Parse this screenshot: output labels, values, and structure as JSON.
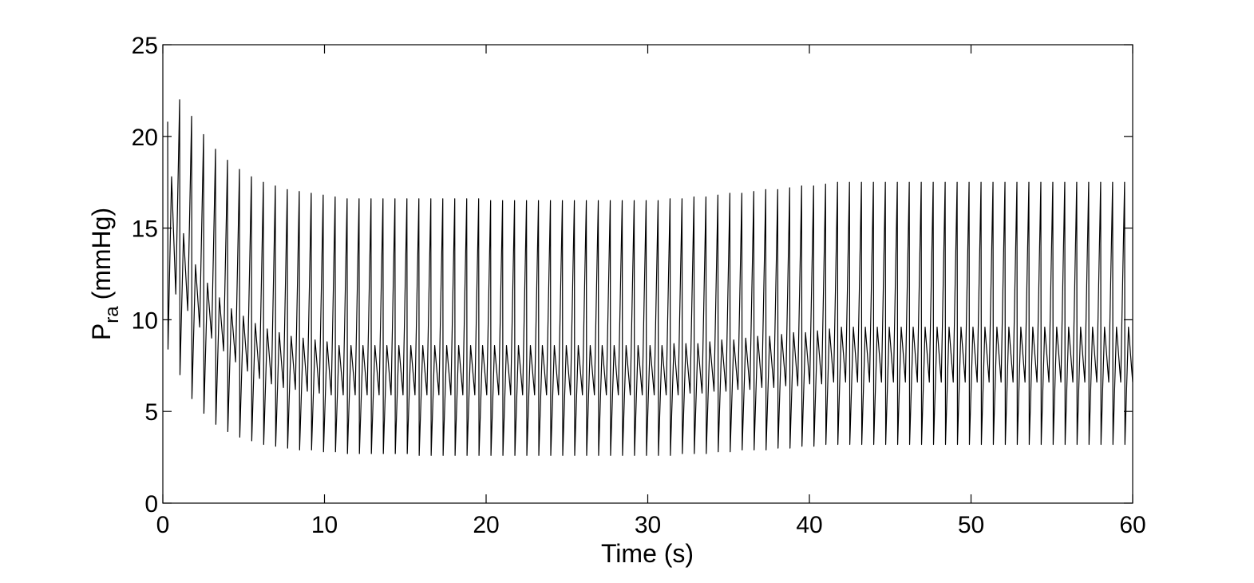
{
  "chart_data": {
    "type": "line",
    "x_label": "Time (s)",
    "y_label": {
      "base": "P",
      "subscript": "ra",
      "rest": "(mmHg)"
    },
    "color": "#000000",
    "xlim": [
      0,
      60
    ],
    "xticks": [
      0,
      10,
      20,
      30,
      40,
      50,
      60
    ],
    "ylim": [
      0,
      25
    ],
    "yticks": [
      0,
      5,
      10,
      15,
      20,
      25
    ],
    "x": [
      0.3,
      0.32,
      0.54,
      0.8,
      1.04,
      1.06,
      1.28,
      1.54,
      1.78,
      1.8,
      2.02,
      2.28,
      2.52,
      2.54,
      2.76,
      3.02,
      3.26,
      3.28,
      3.5,
      3.76,
      4.0,
      4.02,
      4.24,
      4.5,
      4.74,
      4.76,
      4.98,
      5.24,
      5.48,
      5.5,
      5.72,
      5.98,
      6.22,
      6.24,
      6.46,
      6.72,
      6.96,
      6.98,
      7.2,
      7.46,
      7.7,
      7.72,
      7.94,
      8.2,
      8.44,
      8.46,
      8.68,
      8.94,
      9.18,
      9.2,
      9.42,
      9.68,
      9.92,
      9.94,
      10.16,
      10.42,
      10.66,
      10.68,
      10.9,
      11.16,
      11.4,
      11.42,
      11.64,
      11.9,
      12.14,
      12.16,
      12.38,
      12.64,
      12.88,
      12.9,
      13.12,
      13.38,
      13.62,
      13.64,
      13.86,
      14.12,
      14.36,
      14.38,
      14.6,
      14.86,
      15.1,
      15.12,
      15.34,
      15.6,
      15.84,
      15.86,
      16.08,
      16.34,
      16.58,
      16.6,
      16.82,
      17.08,
      17.32,
      17.34,
      17.56,
      17.82,
      18.06,
      18.08,
      18.3,
      18.56,
      18.8,
      18.82,
      19.04,
      19.3,
      19.54,
      19.56,
      19.78,
      20.04,
      20.28,
      20.3,
      20.52,
      20.78,
      21.02,
      21.04,
      21.26,
      21.52,
      21.76,
      21.78,
      22.0,
      22.26,
      22.5,
      22.52,
      22.74,
      23.0,
      23.24,
      23.26,
      23.48,
      23.74,
      23.98,
      24.0,
      24.22,
      24.48,
      24.72,
      24.74,
      24.96,
      25.22,
      25.46,
      25.48,
      25.7,
      25.96,
      26.2,
      26.22,
      26.44,
      26.7,
      26.94,
      26.96,
      27.18,
      27.44,
      27.68,
      27.7,
      27.92,
      28.18,
      28.42,
      28.44,
      28.66,
      28.92,
      29.16,
      29.18,
      29.4,
      29.66,
      29.9,
      29.92,
      30.14,
      30.4,
      30.64,
      30.66,
      30.88,
      31.14,
      31.38,
      31.4,
      31.62,
      31.88,
      32.12,
      32.14,
      32.36,
      32.62,
      32.86,
      32.88,
      33.1,
      33.36,
      33.6,
      33.62,
      33.84,
      34.1,
      34.34,
      34.36,
      34.58,
      34.84,
      35.08,
      35.1,
      35.32,
      35.58,
      35.82,
      35.84,
      36.06,
      36.32,
      36.56,
      36.58,
      36.8,
      37.06,
      37.3,
      37.32,
      37.54,
      37.8,
      38.04,
      38.06,
      38.28,
      38.54,
      38.78,
      38.8,
      39.02,
      39.28,
      39.52,
      39.54,
      39.76,
      40.02,
      40.26,
      40.28,
      40.5,
      40.76,
      41.0,
      41.02,
      41.24,
      41.5,
      41.74,
      41.76,
      41.98,
      42.24,
      42.48,
      42.5,
      42.72,
      42.98,
      43.22,
      43.24,
      43.46,
      43.72,
      43.96,
      43.98,
      44.2,
      44.46,
      44.7,
      44.72,
      44.94,
      45.2,
      45.44,
      45.46,
      45.68,
      45.94,
      46.18,
      46.2,
      46.42,
      46.68,
      46.92,
      46.94,
      47.16,
      47.42,
      47.66,
      47.68,
      47.9,
      48.16,
      48.4,
      48.42,
      48.64,
      48.9,
      49.14,
      49.16,
      49.38,
      49.64,
      49.88,
      49.9,
      50.12,
      50.38,
      50.62,
      50.64,
      50.86,
      51.12,
      51.36,
      51.38,
      51.6,
      51.86,
      52.1,
      52.12,
      52.34,
      52.6,
      52.84,
      52.86,
      53.08,
      53.34,
      53.58,
      53.6,
      53.82,
      54.08,
      54.32,
      54.34,
      54.56,
      54.82,
      55.06,
      55.08,
      55.3,
      55.56,
      55.8,
      55.82,
      56.04,
      56.3,
      56.54,
      56.56,
      56.78,
      57.04,
      57.28,
      57.3,
      57.52,
      57.78,
      58.02,
      58.04,
      58.26,
      58.52,
      58.76,
      58.78,
      59.0,
      59.26,
      59.5,
      59.52,
      59.74,
      60.0
    ],
    "values": [
      20.8,
      8.4,
      17.8,
      11.4,
      22.0,
      7.0,
      14.7,
      10.5,
      21.1,
      5.7,
      13.0,
      9.6,
      20.1,
      4.9,
      12.0,
      9.0,
      19.3,
      4.3,
      11.2,
      8.3,
      18.7,
      3.9,
      10.6,
      7.7,
      18.2,
      3.6,
      10.2,
      7.2,
      17.8,
      3.4,
      9.8,
      6.8,
      17.5,
      3.2,
      9.5,
      6.5,
      17.3,
      3.1,
      9.3,
      6.3,
      17.1,
      3.0,
      9.1,
      6.2,
      17.0,
      2.9,
      9.0,
      6.1,
      16.9,
      2.9,
      8.9,
      6.0,
      16.8,
      2.8,
      8.8,
      5.9,
      16.7,
      2.8,
      8.6,
      5.9,
      16.6,
      2.7,
      8.6,
      5.9,
      16.6,
      2.7,
      8.6,
      5.9,
      16.6,
      2.7,
      8.6,
      5.9,
      16.6,
      2.7,
      8.6,
      5.9,
      16.6,
      2.7,
      8.6,
      5.9,
      16.6,
      2.7,
      8.6,
      5.9,
      16.6,
      2.6,
      8.6,
      5.9,
      16.6,
      2.6,
      8.6,
      5.9,
      16.6,
      2.6,
      8.6,
      5.9,
      16.6,
      2.6,
      8.6,
      5.9,
      16.6,
      2.6,
      8.6,
      5.9,
      16.6,
      2.6,
      8.6,
      5.9,
      16.5,
      2.6,
      8.6,
      5.9,
      16.5,
      2.6,
      8.6,
      5.9,
      16.5,
      2.6,
      8.6,
      5.9,
      16.5,
      2.6,
      8.6,
      5.9,
      16.5,
      2.6,
      8.6,
      5.9,
      16.5,
      2.6,
      8.6,
      5.9,
      16.5,
      2.6,
      8.6,
      5.9,
      16.5,
      2.6,
      8.6,
      5.9,
      16.5,
      2.6,
      8.6,
      5.9,
      16.5,
      2.6,
      8.6,
      5.9,
      16.5,
      2.6,
      8.6,
      5.9,
      16.5,
      2.6,
      8.6,
      5.9,
      16.5,
      2.6,
      8.6,
      5.9,
      16.5,
      2.6,
      8.6,
      5.9,
      16.5,
      2.6,
      8.6,
      5.9,
      16.6,
      2.6,
      8.7,
      5.9,
      16.6,
      2.7,
      8.7,
      6.0,
      16.7,
      2.7,
      8.7,
      6.0,
      16.7,
      2.7,
      8.8,
      6.1,
      16.8,
      2.8,
      8.9,
      6.1,
      16.9,
      2.8,
      8.9,
      6.2,
      16.9,
      2.9,
      9.0,
      6.2,
      17.0,
      2.9,
      9.1,
      6.3,
      17.1,
      2.9,
      9.1,
      6.3,
      17.1,
      3.0,
      9.2,
      6.4,
      17.2,
      3.0,
      9.3,
      6.4,
      17.3,
      3.1,
      9.3,
      6.5,
      17.3,
      3.1,
      9.4,
      6.5,
      17.4,
      3.2,
      9.5,
      6.6,
      17.5,
      3.2,
      9.6,
      6.6,
      17.5,
      3.2,
      9.6,
      6.6,
      17.5,
      3.2,
      9.6,
      6.6,
      17.5,
      3.2,
      9.6,
      6.6,
      17.5,
      3.2,
      9.6,
      6.6,
      17.5,
      3.2,
      9.6,
      6.6,
      17.5,
      3.2,
      9.6,
      6.6,
      17.5,
      3.2,
      9.6,
      6.6,
      17.5,
      3.2,
      9.6,
      6.6,
      17.5,
      3.2,
      9.6,
      6.6,
      17.5,
      3.2,
      9.6,
      6.6,
      17.5,
      3.2,
      9.6,
      6.6,
      17.5,
      3.2,
      9.6,
      6.6,
      17.5,
      3.2,
      9.6,
      6.6,
      17.5,
      3.2,
      9.6,
      6.6,
      17.5,
      3.2,
      9.6,
      6.6,
      17.5,
      3.2,
      9.6,
      6.6,
      17.5,
      3.2,
      9.6,
      6.6,
      17.5,
      3.2,
      9.6,
      6.6,
      17.5,
      3.2,
      9.6,
      6.6,
      17.5,
      3.2,
      9.6,
      6.6,
      17.5,
      3.2,
      9.6,
      6.6,
      17.5,
      3.2,
      9.6,
      6.6,
      17.5,
      3.2,
      9.6,
      6.6,
      17.5,
      3.2,
      9.6,
      6.6
    ]
  }
}
